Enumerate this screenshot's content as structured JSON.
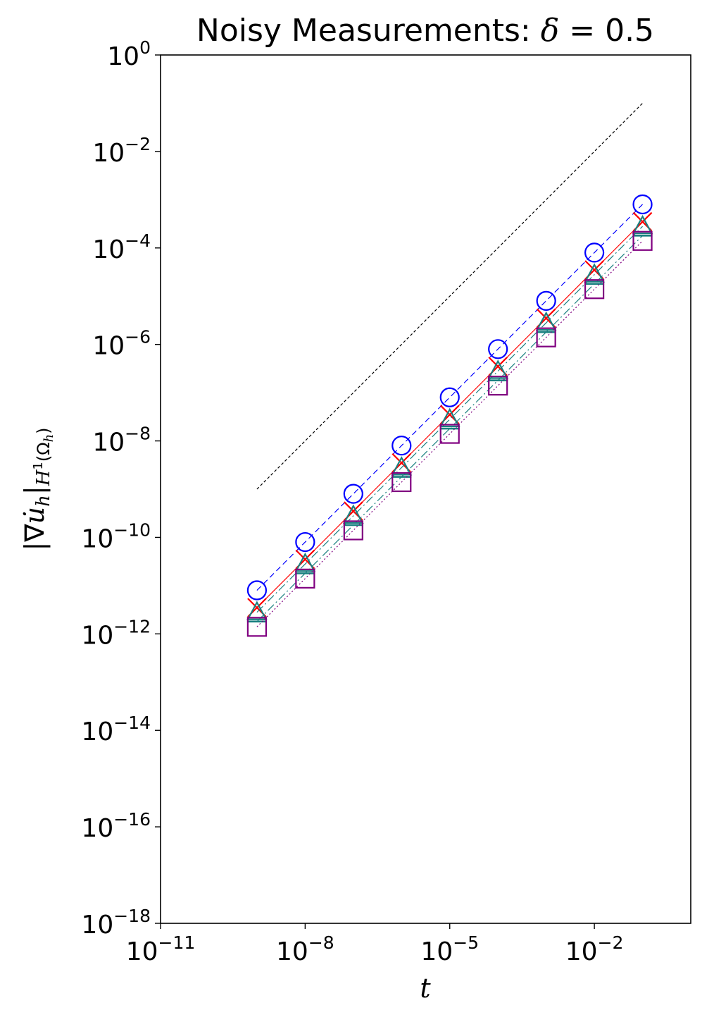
{
  "chart_data": {
    "type": "line",
    "title": "Noisy Measurements: δ = 0.5",
    "title_prefix": "Noisy Measurements: ",
    "title_symbol": "δ",
    "title_suffix": " = 0.5",
    "xlabel": "t",
    "ylabel": "|∇u̇h|H¹(Ωh)",
    "xscale": "log",
    "yscale": "log",
    "xlim": [
      1e-11,
      1
    ],
    "ylim": [
      1e-18,
      1
    ],
    "grid": false,
    "x_tick_labels": [
      {
        "base": "10",
        "exp": "−11",
        "value": 1e-11
      },
      {
        "base": "10",
        "exp": "−8",
        "value": 1e-08
      },
      {
        "base": "10",
        "exp": "−5",
        "value": 1e-05
      },
      {
        "base": "10",
        "exp": "−2",
        "value": 0.01
      }
    ],
    "y_tick_labels": [
      {
        "base": "10",
        "exp": "0",
        "value": 1
      },
      {
        "base": "10",
        "exp": "−2",
        "value": 0.01
      },
      {
        "base": "10",
        "exp": "−4",
        "value": 0.0001
      },
      {
        "base": "10",
        "exp": "−6",
        "value": 1e-06
      },
      {
        "base": "10",
        "exp": "−8",
        "value": 1e-08
      },
      {
        "base": "10",
        "exp": "−10",
        "value": 1e-10
      },
      {
        "base": "10",
        "exp": "−12",
        "value": 1e-12
      },
      {
        "base": "10",
        "exp": "−14",
        "value": 1e-14
      },
      {
        "base": "10",
        "exp": "−16",
        "value": 1e-16
      },
      {
        "base": "10",
        "exp": "−18",
        "value": 1e-18
      }
    ],
    "x": [
      1e-09,
      1e-08,
      1e-07,
      1e-06,
      1e-05,
      0.0001,
      0.001,
      0.01,
      0.1
    ],
    "series": [
      {
        "marker": "circle",
        "color": "#0000ff",
        "dash": "8,5",
        "values": [
          8e-12,
          8e-11,
          8e-10,
          8e-09,
          8e-08,
          8e-07,
          8e-06,
          8e-05,
          0.0008
        ]
      },
      {
        "marker": "x",
        "color": "#ff0000",
        "dash": "",
        "values": [
          3.5e-12,
          3.5e-11,
          3.5e-10,
          3.5e-09,
          3.5e-08,
          3.5e-07,
          3.5e-06,
          3.5e-05,
          0.00035
        ]
      },
      {
        "marker": "triangle",
        "color": "#1a8080",
        "dash": "12,4,2,4",
        "values": [
          2.8e-12,
          2.8e-11,
          2.8e-10,
          2.8e-09,
          2.8e-08,
          2.8e-07,
          2.8e-06,
          2.8e-05,
          0.00028
        ]
      },
      {
        "marker": "hline",
        "color": "#1a8080",
        "dash": "12,4,2,4",
        "values": [
          1.8e-12,
          1.8e-11,
          1.8e-10,
          1.8e-09,
          1.8e-08,
          1.8e-07,
          1.8e-06,
          1.8e-05,
          0.00018
        ]
      },
      {
        "marker": "square",
        "color": "#800080",
        "dash": "2,3",
        "values": [
          1.4e-12,
          1.4e-11,
          1.4e-10,
          1.4e-09,
          1.4e-08,
          1.4e-07,
          1.4e-06,
          1.4e-05,
          0.00014
        ]
      }
    ],
    "reference_line": {
      "color": "#000000",
      "dash": "4,3",
      "x": [
        1e-09,
        0.1
      ],
      "y": [
        1e-09,
        0.1
      ]
    }
  }
}
